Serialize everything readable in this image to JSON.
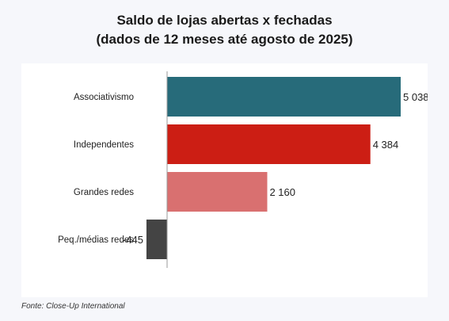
{
  "chart_data": {
    "type": "bar",
    "orientation": "horizontal",
    "title": "Saldo de lojas abertas x fechadas",
    "subtitle": "(dados de 12 meses até agosto de 2025)",
    "categories": [
      "Associativismo",
      "Independentes",
      "Grandes redes",
      "Peq./médias redes"
    ],
    "values": [
      5038,
      4384,
      2160,
      -445
    ],
    "value_labels": [
      "5 038",
      "4 384",
      "2 160",
      "-445"
    ],
    "colors": [
      "#276b7a",
      "#cc1e14",
      "#d97070",
      "#444444"
    ],
    "xlim": [
      -445,
      5038
    ],
    "grid": false,
    "legend": "none"
  },
  "footer": {
    "source": "Fonte: Close-Up International"
  }
}
